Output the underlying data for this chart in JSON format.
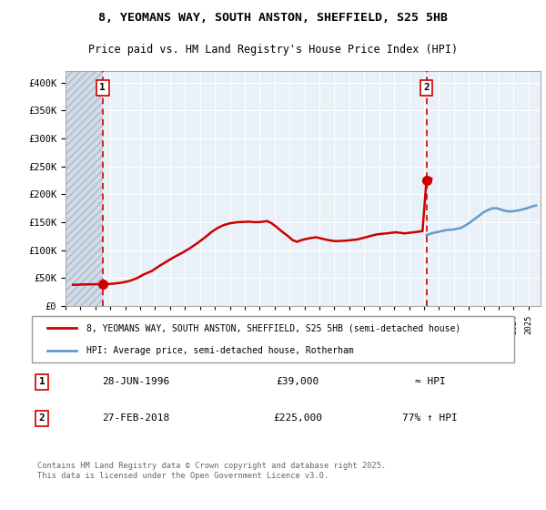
{
  "title_line1": "8, YEOMANS WAY, SOUTH ANSTON, SHEFFIELD, S25 5HB",
  "title_line2": "Price paid vs. HM Land Registry's House Price Index (HPI)",
  "legend_label1": "8, YEOMANS WAY, SOUTH ANSTON, SHEFFIELD, S25 5HB (semi-detached house)",
  "legend_label2": "HPI: Average price, semi-detached house, Rotherham",
  "transaction1_date": "28-JUN-1996",
  "transaction1_price": 39000,
  "transaction1_hpi": "≈ HPI",
  "transaction2_date": "27-FEB-2018",
  "transaction2_price": 225000,
  "transaction2_hpi": "77% ↑ HPI",
  "copyright_text": "Contains HM Land Registry data © Crown copyright and database right 2025.\nThis data is licensed under the Open Government Licence v3.0.",
  "sale_color": "#cc0000",
  "hpi_color": "#6699cc",
  "vline_color": "#cc0000",
  "background_plot": "#e8f0f8",
  "background_hatch": "#d0dce8",
  "ylim": [
    0,
    420000
  ],
  "yticks": [
    0,
    50000,
    100000,
    150000,
    200000,
    250000,
    300000,
    350000,
    400000
  ],
  "xlim_start": 1994.0,
  "xlim_end": 2025.8,
  "marker1_x": 1996.49,
  "marker1_y": 39000,
  "marker2_x": 2018.16,
  "marker2_y": 225000,
  "vline1_x": 1996.49,
  "vline2_x": 2018.16,
  "sale_line_data_x": [
    1994.5,
    1994.8,
    1995.0,
    1995.3,
    1995.5,
    1995.7,
    1995.9,
    1996.1,
    1996.49,
    1996.8,
    1997.2,
    1997.8,
    1998.3,
    1998.8,
    1999.2,
    1999.8,
    2000.3,
    2000.8,
    2001.3,
    2001.8,
    2002.3,
    2002.8,
    2003.3,
    2003.8,
    2004.2,
    2004.6,
    2005.0,
    2005.5,
    2005.9,
    2006.3,
    2006.7,
    2007.1,
    2007.5,
    2007.8,
    2008.1,
    2008.5,
    2008.9,
    2009.2,
    2009.5,
    2009.8,
    2010.1,
    2010.5,
    2010.8,
    2011.1,
    2011.4,
    2011.8,
    2012.1,
    2012.4,
    2012.8,
    2013.1,
    2013.5,
    2013.8,
    2014.1,
    2014.5,
    2014.8,
    2015.1,
    2015.5,
    2015.8,
    2016.1,
    2016.4,
    2016.7,
    2017.0,
    2017.3,
    2017.6,
    2017.9,
    2018.16,
    2018.5
  ],
  "sale_line_data_y": [
    38000,
    38200,
    38400,
    38600,
    38700,
    38800,
    38850,
    38900,
    39000,
    39200,
    40000,
    42000,
    45000,
    50000,
    56000,
    63000,
    72000,
    80000,
    88000,
    95000,
    103000,
    112000,
    122000,
    133000,
    140000,
    145000,
    148000,
    150000,
    150500,
    151000,
    150000,
    150500,
    152000,
    148000,
    142000,
    133000,
    125000,
    118000,
    115000,
    118000,
    120000,
    122000,
    123000,
    121000,
    119000,
    117000,
    116000,
    116500,
    117000,
    118000,
    119000,
    121000,
    123000,
    126000,
    128000,
    129000,
    130000,
    131000,
    132000,
    131000,
    130000,
    131000,
    132000,
    133000,
    134000,
    225000,
    228000
  ],
  "hpi_line_data_x": [
    2018.16,
    2018.5,
    2019.0,
    2019.5,
    2020.0,
    2020.5,
    2021.0,
    2021.5,
    2022.0,
    2022.3,
    2022.6,
    2022.9,
    2023.2,
    2023.5,
    2023.8,
    2024.0,
    2024.3,
    2024.6,
    2024.9,
    2025.2,
    2025.5
  ],
  "hpi_line_data_y": [
    127000,
    130000,
    133000,
    136000,
    137000,
    140000,
    148000,
    158000,
    168000,
    172000,
    175000,
    175000,
    172000,
    170000,
    169000,
    170000,
    171000,
    173000,
    175000,
    178000,
    180000
  ]
}
